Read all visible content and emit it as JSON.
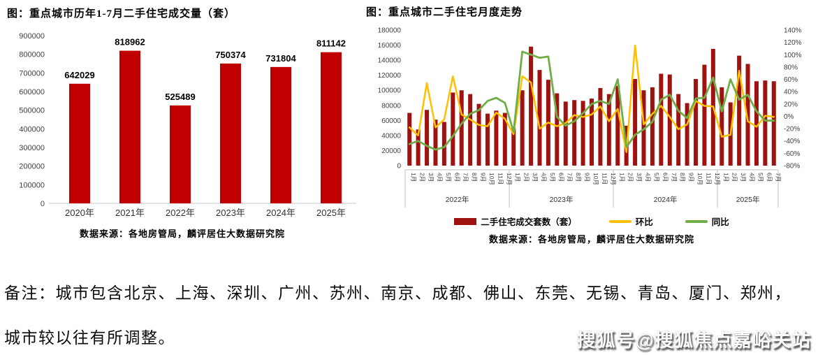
{
  "page": {
    "note_line1": "备注：城市包含北京、上海、深圳、广州、苏州、南京、成都、佛山、东莞、无锡、青岛、厦门、郑州，",
    "note_line2": "城市较以往有所调整。",
    "watermark": "搜狐号@搜狐焦点嘉峪关站"
  },
  "colors": {
    "bar_left": "#C00000",
    "bar_right": "#9E1310",
    "mom_line": "#FFC000",
    "yoy_line": "#70AD47",
    "axis_text": "#404040"
  },
  "chart_data": [
    {
      "type": "bar",
      "title": "图：重点城市历年1-7月二手住宅成交量（套）",
      "categories": [
        "2020年",
        "2021年",
        "2022年",
        "2023年",
        "2024年",
        "2025年"
      ],
      "values": [
        642029,
        818962,
        525489,
        750374,
        731804,
        811142
      ],
      "data_labels": [
        "642029",
        "818962",
        "525489",
        "750374",
        "731804",
        "811142"
      ],
      "ylim": [
        0,
        900000
      ],
      "y_ticks": [
        "900000",
        "800000",
        "700000",
        "600000",
        "500000",
        "400000",
        "300000",
        "200000",
        "100000",
        "0"
      ],
      "grid": false,
      "legend_position": "none",
      "source": "数据来源：各地房管局，麟评居住大数据研究院"
    },
    {
      "type": "combo",
      "title": "图：重点城市二手住宅月度走势",
      "groups": [
        {
          "year": "2022年",
          "months": 12
        },
        {
          "year": "2023年",
          "months": 12
        },
        {
          "year": "2024年",
          "months": 12
        },
        {
          "year": "2025年",
          "months": 7
        }
      ],
      "month_label_suffix": "月",
      "left_axis": {
        "min": 0,
        "max": 180000,
        "ticks": [
          "180000",
          "160000",
          "140000",
          "120000",
          "100000",
          "80000",
          "60000",
          "40000",
          "20000",
          "0"
        ]
      },
      "right_axis": {
        "min": -80,
        "max": 140,
        "ticks": [
          "140%",
          "120%",
          "100%",
          "80%",
          "60%",
          "40%",
          "20%",
          "0%",
          "-20%",
          "-40%",
          "-60%",
          "-80%"
        ]
      },
      "series": [
        {
          "name": "二手住宅成交套数（套）",
          "type": "bar",
          "axis": "left",
          "values": [
            70000,
            48000,
            74000,
            61000,
            58000,
            97000,
            100000,
            95000,
            82000,
            69000,
            73000,
            70000,
            50000,
            100000,
            158000,
            127000,
            114000,
            96000,
            85000,
            87000,
            86000,
            89000,
            103000,
            95000,
            106000,
            53000,
            115000,
            100000,
            104000,
            122000,
            121000,
            95000,
            83000,
            115000,
            134000,
            155000,
            104000,
            84000,
            146000,
            135000,
            112000,
            113000,
            112000
          ]
        },
        {
          "name": "环比",
          "type": "line",
          "axis": "right",
          "values": [
            -18,
            -31,
            54,
            -18,
            -5,
            65,
            3,
            -5,
            -14,
            -16,
            6,
            -4,
            -29,
            65,
            55,
            -20,
            -10,
            -16,
            -11,
            2,
            -1,
            3,
            16,
            -8,
            12,
            -58,
            115,
            -13,
            4,
            17,
            -1,
            -21,
            -13,
            25,
            17,
            16,
            -33,
            -30,
            74,
            -8,
            -17,
            1,
            -1
          ]
        },
        {
          "name": "同比",
          "type": "line",
          "axis": "right",
          "values": [
            -45,
            -40,
            -48,
            -54,
            -50,
            -32,
            -12,
            4,
            10,
            25,
            30,
            22,
            -25,
            105,
            100,
            95,
            97,
            -1,
            -15,
            -8,
            5,
            20,
            25,
            20,
            60,
            -50,
            -30,
            -21,
            -9,
            27,
            35,
            9,
            -3,
            29,
            30,
            63,
            8,
            60,
            27,
            35,
            8,
            -7,
            -7
          ]
        }
      ],
      "grid": false,
      "legend_position": "bottom",
      "source": "数据来源：各地房管局，麟评居住大数据研究院"
    }
  ]
}
